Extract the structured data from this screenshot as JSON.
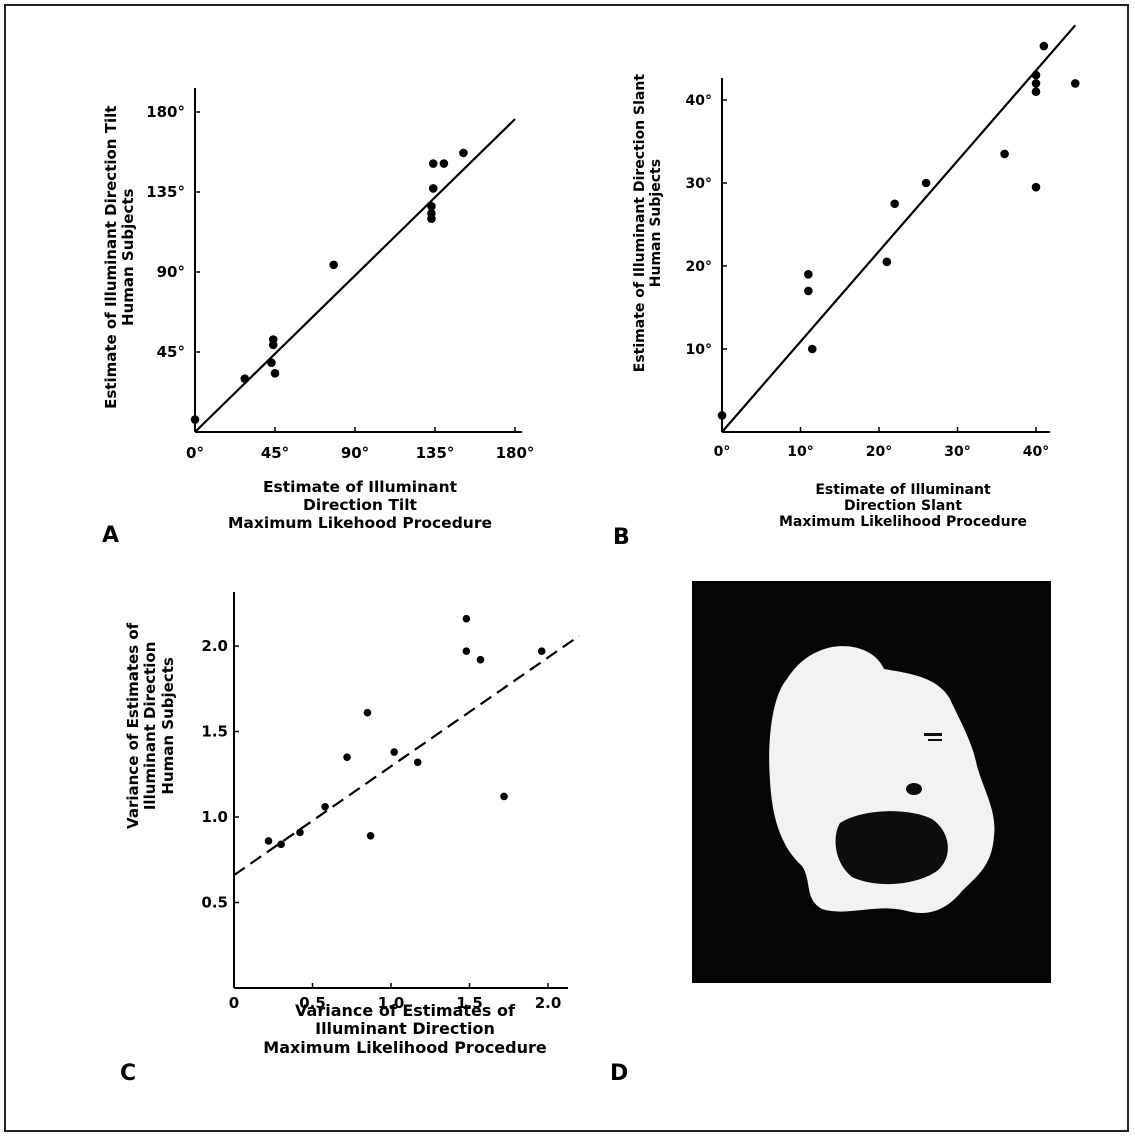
{
  "chart_data": [
    {
      "panel": "A",
      "type": "scatter",
      "xlabel": [
        "Estimate of Illuminant",
        "Direction Tilt",
        "Maximum Likehood Procedure"
      ],
      "ylabel": [
        "Estimate of Illuminant Direction Tilt",
        "Human Subjects"
      ],
      "xlim": [
        0,
        180
      ],
      "ylim": [
        0,
        180
      ],
      "x_ticks": [
        0,
        45,
        90,
        135,
        180
      ],
      "x_tick_labels": [
        "0°",
        "45°",
        "90°",
        "135°",
        "180°"
      ],
      "y_ticks": [
        45,
        90,
        135,
        180
      ],
      "y_tick_labels": [
        "45°",
        "90°",
        "135°",
        "180°"
      ],
      "fit_line": {
        "style": "solid",
        "x": [
          0,
          180
        ],
        "y": [
          0,
          176
        ]
      },
      "points": [
        {
          "x": 0,
          "y": 7
        },
        {
          "x": 28,
          "y": 30
        },
        {
          "x": 43,
          "y": 39
        },
        {
          "x": 44,
          "y": 49
        },
        {
          "x": 44,
          "y": 52
        },
        {
          "x": 45,
          "y": 33
        },
        {
          "x": 78,
          "y": 94
        },
        {
          "x": 133,
          "y": 123
        },
        {
          "x": 133,
          "y": 120
        },
        {
          "x": 133,
          "y": 127
        },
        {
          "x": 134,
          "y": 137
        },
        {
          "x": 134,
          "y": 151
        },
        {
          "x": 140,
          "y": 151
        },
        {
          "x": 151,
          "y": 157
        }
      ]
    },
    {
      "panel": "B",
      "type": "scatter",
      "xlabel": [
        "Estimate of Illuminant",
        "Direction Slant",
        "Maximum Likelihood Procedure"
      ],
      "ylabel": [
        "Estimate of Illuminant Direction Slant",
        "Human Subjects"
      ],
      "xlim": [
        0,
        45
      ],
      "ylim": [
        0,
        47
      ],
      "x_ticks": [
        0,
        10,
        20,
        30,
        40
      ],
      "x_tick_labels": [
        "0°",
        "10°",
        "20°",
        "30°",
        "40°"
      ],
      "y_ticks": [
        10,
        20,
        30,
        40
      ],
      "y_tick_labels": [
        "10°",
        "20°",
        "30°",
        "40°"
      ],
      "fit_line": {
        "style": "solid",
        "x": [
          0,
          45
        ],
        "y": [
          0,
          49
        ]
      },
      "points": [
        {
          "x": 0,
          "y": 2
        },
        {
          "x": 11,
          "y": 19
        },
        {
          "x": 11,
          "y": 17
        },
        {
          "x": 11.5,
          "y": 10
        },
        {
          "x": 21,
          "y": 20.5
        },
        {
          "x": 22,
          "y": 27.5
        },
        {
          "x": 26,
          "y": 30
        },
        {
          "x": 36,
          "y": 33.5
        },
        {
          "x": 40,
          "y": 29.5
        },
        {
          "x": 40,
          "y": 41
        },
        {
          "x": 40,
          "y": 42
        },
        {
          "x": 40,
          "y": 43
        },
        {
          "x": 41,
          "y": 46.5
        },
        {
          "x": 45,
          "y": 42
        }
      ]
    },
    {
      "panel": "C",
      "type": "scatter",
      "xlabel": [
        "Variance of Estimates of",
        "Illuminant Direction",
        "Maximum Likelihood Procedure"
      ],
      "ylabel": [
        "Variance of Estimates of",
        "Illuminant Direction",
        "Human Subjects"
      ],
      "xlim": [
        0,
        2.1
      ],
      "ylim": [
        0,
        2.3
      ],
      "x_ticks": [
        0,
        0.5,
        1.0,
        1.5,
        2.0
      ],
      "x_tick_labels": [
        "0",
        "0.5",
        "1.0",
        "1.5",
        "2.0"
      ],
      "y_ticks": [
        0.5,
        1.0,
        1.5,
        2.0
      ],
      "y_tick_labels": [
        "0.5",
        "1.0",
        "1.5",
        "2.0"
      ],
      "fit_line": {
        "style": "dashed",
        "x": [
          0,
          2.2
        ],
        "y": [
          0.66,
          2.06
        ]
      },
      "points": [
        {
          "x": 0.22,
          "y": 0.86
        },
        {
          "x": 0.3,
          "y": 0.84
        },
        {
          "x": 0.42,
          "y": 0.91
        },
        {
          "x": 0.58,
          "y": 1.06
        },
        {
          "x": 0.72,
          "y": 1.35
        },
        {
          "x": 0.85,
          "y": 1.61
        },
        {
          "x": 0.87,
          "y": 0.89
        },
        {
          "x": 1.02,
          "y": 1.38
        },
        {
          "x": 1.17,
          "y": 1.32
        },
        {
          "x": 1.48,
          "y": 2.16
        },
        {
          "x": 1.48,
          "y": 1.97
        },
        {
          "x": 1.57,
          "y": 1.92
        },
        {
          "x": 1.72,
          "y": 1.12
        },
        {
          "x": 1.96,
          "y": 1.97
        }
      ]
    }
  ],
  "panel_letters": {
    "a": "A",
    "b": "B",
    "c": "C",
    "d": "D"
  },
  "photo": {
    "panel": "D",
    "background_color": "#050505",
    "object_color": "#f2f2f2",
    "shadow_color": "#0d0d0d"
  }
}
